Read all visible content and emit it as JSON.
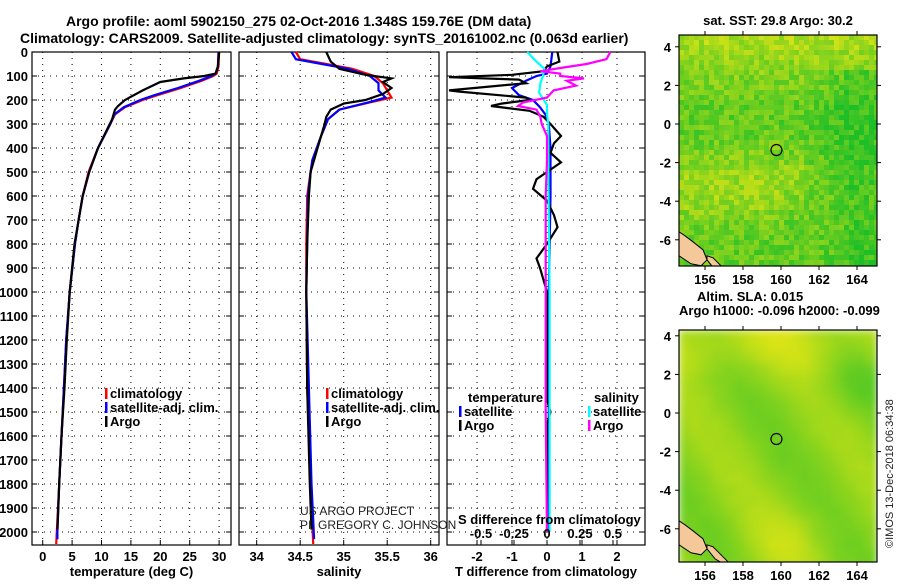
{
  "title": {
    "line1": "Argo profile: aoml 5902150_275 02-Oct-2016 1.348S 159.76E (DM data)",
    "line2": "Climatology: CARS2009. Satellite-adjusted climatology: synTS_20161002.nc (0.063d earlier)"
  },
  "credit": {
    "line1": "US ARGO PROJECT",
    "line2": "PI: GREGORY C. JOHNSON"
  },
  "watermark": "©IMOS 13-Dec-2018 06:34:38",
  "colors": {
    "climatology": "#ff0000",
    "satellite": "#0000ff",
    "argo": "#000000",
    "sal_satellite": "#00ffff",
    "sal_argo": "#ff00ff",
    "land": "#f5c89a"
  },
  "chart_data": [
    {
      "type": "line",
      "xlabel": "temperature (deg C)",
      "ylabel": "depth",
      "xlim": [
        -1.8,
        32.1
      ],
      "ylim": [
        2055,
        0
      ],
      "xticks": [
        "0",
        "5",
        "10",
        "15",
        "20",
        "25",
        "30"
      ],
      "xtick_values": [
        0,
        5,
        10,
        15,
        20,
        25,
        30
      ],
      "yticks": [
        "0",
        "100",
        "200",
        "300",
        "400",
        "500",
        "600",
        "700",
        "800",
        "900",
        "1000",
        "1100",
        "1200",
        "1300",
        "1400",
        "1500",
        "1600",
        "1700",
        "1800",
        "1900",
        "2000"
      ],
      "legend": [
        "climatology",
        "satellite-adj. clim.",
        "Argo"
      ],
      "series": [
        {
          "name": "climatology",
          "color": "#ff0000",
          "depth": [
            0,
            60,
            90,
            100,
            120,
            150,
            180,
            200,
            230,
            260,
            300,
            400,
            500,
            600,
            700,
            800,
            1000,
            1200,
            1400,
            1600,
            1800,
            2000,
            2050
          ],
          "values": [
            30,
            29.9,
            29.6,
            29.0,
            27.0,
            23.5,
            19.5,
            17.0,
            14.0,
            12.3,
            11.5,
            9.4,
            7.8,
            6.8,
            6.1,
            5.5,
            4.6,
            4.0,
            3.6,
            3.2,
            2.8,
            2.4,
            2.3
          ]
        },
        {
          "name": "satellite-adj. clim.",
          "color": "#0000ff",
          "depth": [
            0,
            60,
            90,
            100,
            120,
            150,
            180,
            200,
            230,
            260,
            300,
            400,
            500,
            600,
            700,
            800,
            1000,
            1200,
            1400,
            1600,
            1800,
            2000,
            2030
          ],
          "values": [
            29.9,
            29.8,
            29.4,
            28.7,
            26.6,
            23.0,
            19.0,
            16.6,
            13.8,
            12.2,
            11.5,
            9.4,
            7.9,
            6.8,
            6.1,
            5.5,
            4.6,
            4.0,
            3.6,
            3.2,
            2.8,
            2.5,
            2.5
          ]
        },
        {
          "name": "Argo",
          "color": "#000000",
          "depth": [
            0,
            60,
            90,
            100,
            110,
            125,
            160,
            200,
            225,
            240,
            280,
            400,
            500,
            600,
            700,
            800,
            1000,
            1200,
            1400,
            1600,
            1800,
            1990
          ],
          "values": [
            30.0,
            29.8,
            29.4,
            27.5,
            24.0,
            20.0,
            17.0,
            14.0,
            12.8,
            12.3,
            11.8,
            9.4,
            7.9,
            6.8,
            6.1,
            5.4,
            4.6,
            4.1,
            3.7,
            3.2,
            2.8,
            2.5
          ]
        }
      ]
    },
    {
      "type": "line",
      "xlabel": "salinity",
      "xlim": [
        33.8,
        36.1
      ],
      "ylim": [
        2055,
        0
      ],
      "xticks": [
        "34",
        "34.5",
        "35",
        "35.5",
        "36"
      ],
      "xtick_values": [
        34,
        34.5,
        35,
        35.5,
        36
      ],
      "legend": [
        "climatology",
        "satellite-adj. clim.",
        "Argo"
      ],
      "series": [
        {
          "name": "climatology",
          "color": "#ff0000",
          "depth": [
            0,
            30,
            50,
            70,
            100,
            130,
            160,
            190,
            210,
            240,
            280,
            350,
            450,
            500,
            600,
            800,
            1000,
            1400,
            1800,
            2050
          ],
          "values": [
            34.45,
            34.5,
            34.8,
            35.1,
            35.35,
            35.45,
            35.5,
            35.55,
            35.3,
            34.95,
            34.82,
            34.74,
            34.64,
            34.62,
            34.58,
            34.57,
            34.57,
            34.58,
            34.62,
            34.65
          ]
        },
        {
          "name": "satellite-adj. clim.",
          "color": "#0000ff",
          "depth": [
            0,
            30,
            50,
            70,
            100,
            130,
            160,
            190,
            210,
            240,
            280,
            350,
            450,
            500,
            600,
            800,
            1000,
            1400,
            1800,
            2030
          ],
          "values": [
            34.4,
            34.45,
            34.75,
            35.05,
            35.3,
            35.4,
            35.4,
            35.48,
            35.28,
            34.95,
            34.82,
            34.74,
            34.64,
            34.62,
            34.59,
            34.58,
            34.57,
            34.6,
            34.63,
            34.66
          ]
        },
        {
          "name": "Argo",
          "color": "#000000",
          "depth": [
            0,
            40,
            70,
            95,
            110,
            125,
            150,
            175,
            200,
            215,
            240,
            270,
            300,
            400,
            500,
            600,
            800,
            1000,
            1400,
            1800,
            1990
          ],
          "values": [
            34.8,
            34.85,
            34.95,
            35.25,
            35.55,
            35.45,
            35.55,
            35.45,
            35.25,
            35.0,
            34.85,
            34.8,
            34.78,
            34.7,
            34.62,
            34.6,
            34.58,
            34.57,
            34.58,
            34.61,
            34.63
          ]
        }
      ]
    },
    {
      "type": "line",
      "xlabel": "T difference from climatology",
      "x2label": "S difference from climatology",
      "xlim": [
        -2.86,
        2.83
      ],
      "x2lim": [
        -0.76,
        0.74
      ],
      "ylim": [
        2055,
        0
      ],
      "xticks": [
        "-2",
        "-1",
        "0",
        "1",
        "2"
      ],
      "xtick_values": [
        -2,
        -1,
        0,
        1,
        2
      ],
      "x2ticks": [
        "-0.5",
        "-0.25",
        "0",
        "0.25",
        "0.5"
      ],
      "x2tick_values": [
        -0.5,
        -0.25,
        0,
        0.25,
        0.5
      ],
      "legend_temperature": {
        "title": "temperature",
        "items": [
          "satellite",
          "Argo"
        ]
      },
      "legend_salinity": {
        "title": "salinity",
        "items": [
          "satellite",
          "Argo"
        ]
      },
      "series": [
        {
          "name": "T satellite",
          "axis": "T",
          "color": "#0000ff",
          "depth": [
            0,
            60,
            90,
            100,
            120,
            150,
            180,
            200,
            230,
            260,
            300,
            400,
            600,
            1000,
            1500,
            2000
          ],
          "values": [
            0.15,
            0.1,
            0.0,
            -0.3,
            -0.6,
            -1.0,
            -0.8,
            -0.4,
            -0.2,
            -0.05,
            0.05,
            0.1,
            0.1,
            0.05,
            0.05,
            0.05
          ]
        },
        {
          "name": "T Argo",
          "axis": "T",
          "color": "#000000",
          "depth": [
            0,
            40,
            60,
            80,
            95,
            105,
            115,
            130,
            160,
            165,
            190,
            200,
            215,
            225,
            245,
            270,
            300,
            350,
            380,
            420,
            460,
            500,
            530,
            570,
            620,
            680,
            730,
            800,
            860,
            900,
            1000,
            1200,
            1450,
            1500,
            1550,
            2000
          ],
          "values": [
            0.3,
            0.35,
            0.0,
            -0.1,
            -1.0,
            -2.8,
            -0.8,
            -0.6,
            -2.8,
            -2.5,
            -0.6,
            -0.5,
            -1.3,
            -1.6,
            -0.5,
            -0.1,
            0.1,
            0.4,
            0.2,
            0.1,
            0.4,
            0.0,
            -0.3,
            -0.4,
            0.0,
            0.2,
            0.3,
            0.0,
            -0.3,
            -0.2,
            0.0,
            0.0,
            0.0,
            0.1,
            0.0,
            0.0
          ]
        },
        {
          "name": "S satellite",
          "axis": "S",
          "color": "#00ffff",
          "depth": [
            0,
            40,
            70,
            100,
            130,
            170,
            220,
            260,
            300,
            500,
            1000,
            1500,
            2000
          ],
          "values": [
            -0.15,
            -0.08,
            -0.02,
            -0.03,
            -0.05,
            -0.06,
            0.0,
            0.0,
            0.01,
            0.01,
            0.02,
            0.02,
            0.02
          ]
        },
        {
          "name": "S Argo",
          "axis": "S",
          "color": "#ff00ff",
          "depth": [
            0,
            30,
            50,
            65,
            80,
            90,
            100,
            110,
            120,
            140,
            160,
            190,
            210,
            225,
            240,
            270,
            300,
            350,
            450,
            600,
            1000,
            1500,
            2000
          ],
          "values": [
            0.48,
            0.45,
            0.3,
            0.12,
            -0.05,
            0.1,
            0.1,
            0.28,
            0.15,
            0.22,
            0.05,
            0.0,
            -0.18,
            -0.22,
            -0.08,
            -0.05,
            -0.04,
            0.0,
            0.0,
            -0.01,
            -0.01,
            -0.01,
            0.0
          ]
        }
      ]
    },
    {
      "type": "heatmap",
      "title": "sat. SST: 29.8 Argo: 30.2",
      "xlim": [
        154.6,
        165.05
      ],
      "ylim": [
        -7.36,
        4.6
      ],
      "xticks": [
        "156",
        "158",
        "160",
        "162",
        "164"
      ],
      "xtick_values": [
        156,
        158,
        160,
        162,
        164
      ],
      "yticks": [
        "4",
        "2",
        "0",
        "-2",
        "-4",
        "-6"
      ],
      "ytick_values": [
        4,
        2,
        0,
        -2,
        -4,
        -6
      ],
      "marker": {
        "lon": 159.76,
        "lat": -1.348
      }
    },
    {
      "type": "heatmap",
      "title": "Altim. SLA: 0.015",
      "subtitle": "Argo h1000: -0.096 h2000: -0.099",
      "xlim": [
        154.6,
        165.05
      ],
      "ylim": [
        -7.5,
        4.6
      ],
      "xticks": [
        "156",
        "158",
        "160",
        "162",
        "164"
      ],
      "xtick_values": [
        156,
        158,
        160,
        162,
        164
      ],
      "yticks": [
        "4",
        "2",
        "0",
        "-2",
        "-4",
        "-6"
      ],
      "ytick_values": [
        4,
        2,
        0,
        -2,
        -4,
        -6
      ],
      "marker": {
        "lon": 159.76,
        "lat": -1.348
      }
    }
  ]
}
